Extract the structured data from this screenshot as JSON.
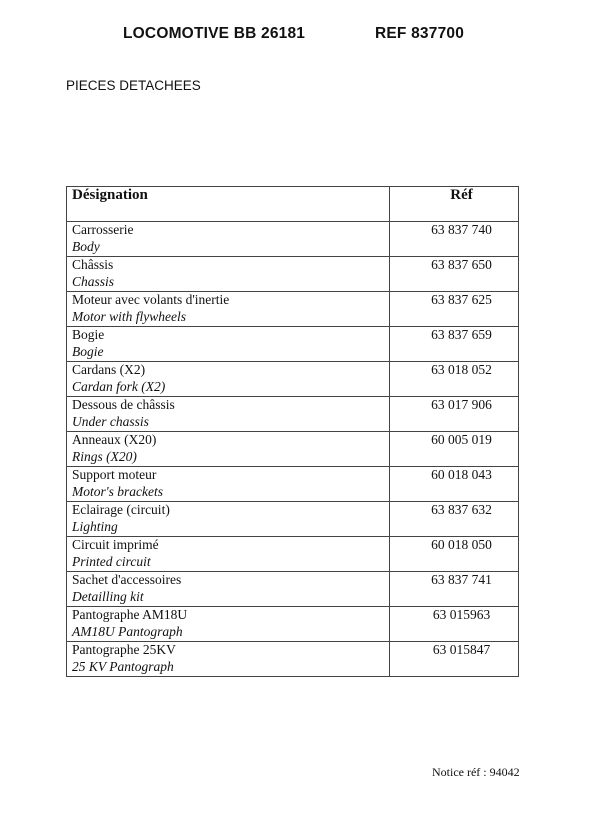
{
  "header": {
    "title": "LOCOMOTIVE BB 26181",
    "ref": "REF 837700"
  },
  "section_title": "PIECES DETACHEES",
  "table": {
    "columns": [
      "Désignation",
      "Réf"
    ],
    "rows": [
      {
        "fr": "Carrosserie",
        "en": "Body",
        "ref": "63 837 740"
      },
      {
        "fr": "Châssis",
        "en": "Chassis",
        "ref": "63 837 650"
      },
      {
        "fr": "Moteur avec volants d'inertie",
        "en": "Motor with flywheels",
        "ref": "63 837 625"
      },
      {
        "fr": "Bogie",
        "en": "Bogie",
        "ref": "63 837 659"
      },
      {
        "fr": "Cardans (X2)",
        "en": "Cardan fork (X2)",
        "ref": "63 018 052"
      },
      {
        "fr": "Dessous de châssis",
        "en": "Under chassis",
        "ref": "63 017 906"
      },
      {
        "fr": "Anneaux (X20)",
        "en": "Rings (X20)",
        "ref": "60 005 019"
      },
      {
        "fr": "Support moteur",
        "en": "Motor's brackets",
        "ref": "60 018 043"
      },
      {
        "fr": "Eclairage (circuit)",
        "en": "Lighting",
        "ref": "63 837 632"
      },
      {
        "fr": "Circuit imprimé",
        "en": "Printed circuit",
        "ref": "60 018 050"
      },
      {
        "fr": "Sachet d'accessoires",
        "en": "Detailling kit",
        "ref": "63 837 741"
      },
      {
        "fr": "Pantographe AM18U",
        "en": "AM18U Pantograph",
        "ref": "63 015963"
      },
      {
        "fr": "Pantographe 25KV",
        "en": "25 KV Pantograph",
        "ref": "63 015847"
      }
    ]
  },
  "footer": {
    "notice": "Notice réf : 94042"
  }
}
